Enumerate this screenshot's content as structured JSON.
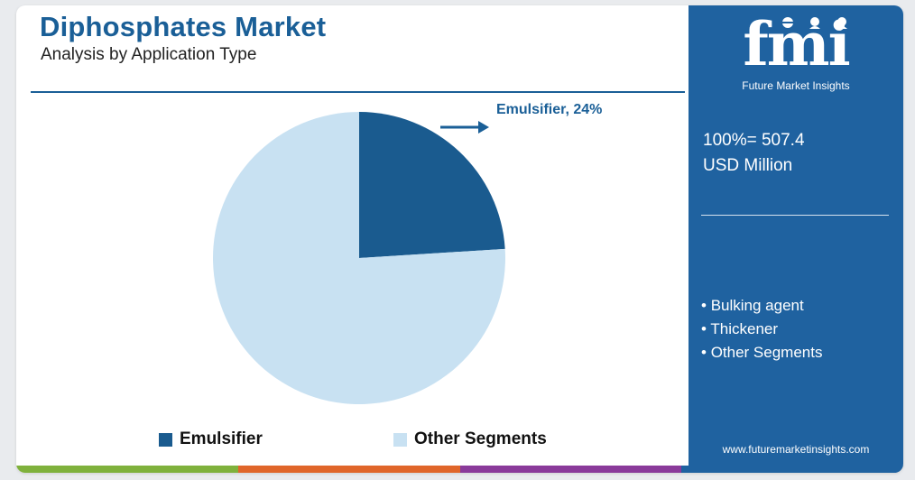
{
  "header": {
    "title": "Diphosphates Market",
    "subtitle": "Analysis by Application Type"
  },
  "chart_data": {
    "type": "pie",
    "categories": [
      "Emulsifier",
      "Other Segments"
    ],
    "values": [
      24,
      76
    ],
    "unit": "%",
    "colors": [
      "#1a5b8f",
      "#c8e1f2"
    ],
    "callout": "Emulsifier, 24%",
    "legend_position": "bottom"
  },
  "panel": {
    "logo_text": "fmi",
    "logo_subtitle": "Future Market Insights",
    "total_line1": "100%= 507.4",
    "total_line2": "USD Million",
    "segments": [
      "Bulking agent",
      "Thickener",
      "Other Segments"
    ],
    "website": "www.futuremarketinsights.com",
    "bg_color": "#1f62a0"
  },
  "footer_colors": [
    "#7fb13c",
    "#e0662a",
    "#8a3a9a",
    "#1f62a0"
  ]
}
